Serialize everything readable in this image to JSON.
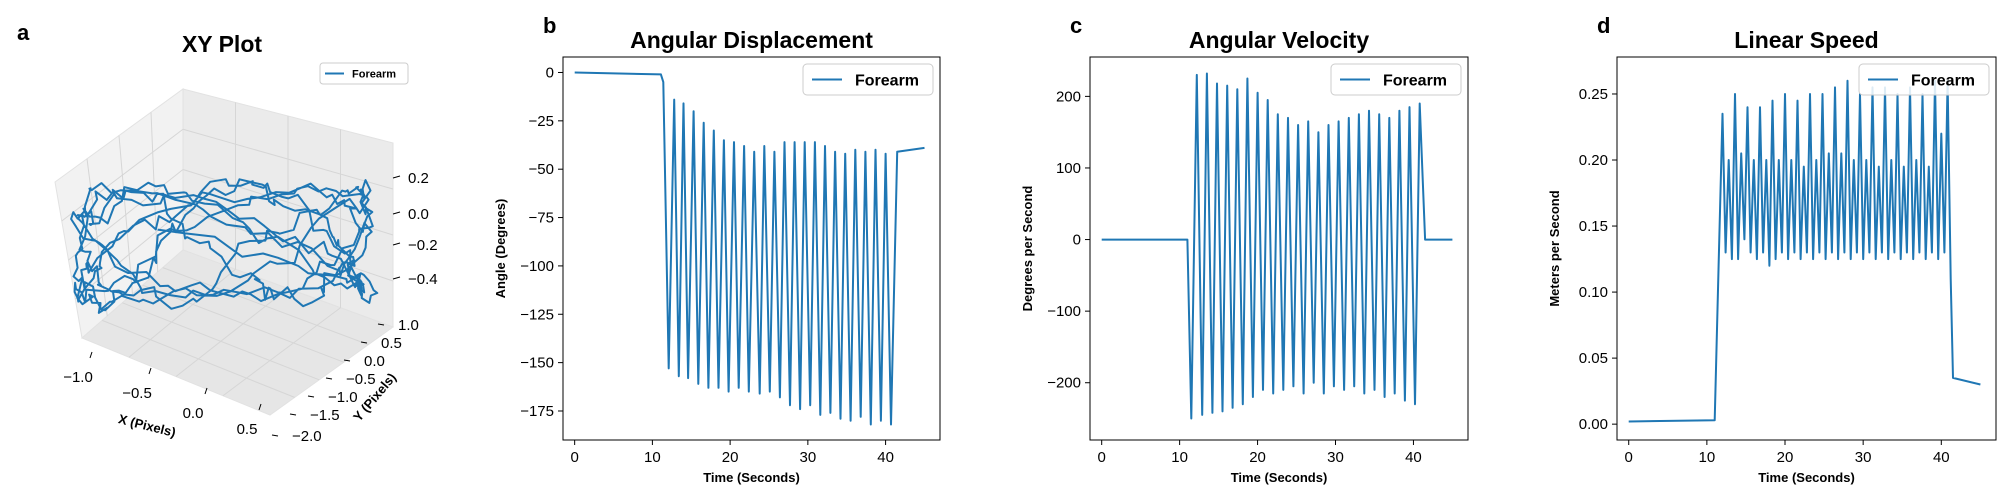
{
  "chart_data": [
    {
      "panel": "a",
      "type": "line-3d",
      "title": "XY Plot",
      "legend": {
        "entries": [
          "Forearm"
        ],
        "placement": "top-right"
      },
      "series": [
        {
          "name": "Forearm",
          "color": "#1f77b4"
        }
      ],
      "axes": {
        "x": {
          "label": "X (Pixels)",
          "ticks": [
            "−1.0",
            "−0.5",
            "0.0",
            "0.5"
          ],
          "range": [
            -1.3,
            0.9
          ]
        },
        "y": {
          "label": "Y (Pixels)",
          "ticks": [
            "1.0",
            "0.5",
            "0.0",
            "−0.5",
            "−1.0",
            "−1.5",
            "−2.0"
          ],
          "range": [
            -2.0,
            1.2
          ]
        },
        "z": {
          "label": "",
          "ticks": [
            "0.2",
            "0.0",
            "−0.2",
            "−0.4"
          ],
          "range": [
            -0.5,
            0.35
          ]
        }
      }
    },
    {
      "panel": "b",
      "type": "line",
      "title": "Angular Displacement",
      "xlabel": "Time (Seconds)",
      "ylabel": "Angle (Degrees)",
      "xlim": [
        -1.5,
        47
      ],
      "ylim": [
        -190,
        8
      ],
      "xticks": [
        "0",
        "10",
        "20",
        "30",
        "40"
      ],
      "yticks": [
        "0",
        "−25",
        "−50",
        "−75",
        "−100",
        "−125",
        "−150",
        "−175"
      ],
      "legend": {
        "entries": [
          "Forearm"
        ],
        "placement": "top-right"
      },
      "series": [
        {
          "name": "Forearm",
          "color": "#1f77b4",
          "x": [
            0,
            11.1,
            11.4,
            12.1,
            12.8,
            13.4,
            14.0,
            14.6,
            15.3,
            15.9,
            16.6,
            17.2,
            17.9,
            18.5,
            19.2,
            19.8,
            20.5,
            21.1,
            21.8,
            22.4,
            23.1,
            23.8,
            24.4,
            25.1,
            25.7,
            26.4,
            27.0,
            27.7,
            28.3,
            29.0,
            29.6,
            30.3,
            30.9,
            31.6,
            32.2,
            32.9,
            33.5,
            34.2,
            34.8,
            35.5,
            36.1,
            36.8,
            37.4,
            38.1,
            38.7,
            39.4,
            40.0,
            40.7,
            41.5,
            45
          ],
          "y": [
            0,
            -1,
            -5,
            -153,
            -14,
            -157,
            -16,
            -158,
            -20,
            -161,
            -26,
            -163,
            -30,
            -163,
            -35,
            -165,
            -36,
            -163,
            -38,
            -165,
            -41,
            -166,
            -38,
            -165,
            -41,
            -168,
            -36,
            -172,
            -36,
            -174,
            -36,
            -172,
            -36,
            -177,
            -38,
            -176,
            -41,
            -179,
            -42,
            -180,
            -40,
            -178,
            -41,
            -182,
            -40,
            -180,
            -42,
            -182,
            -41,
            -39
          ]
        }
      ]
    },
    {
      "panel": "c",
      "type": "line",
      "title": "Angular Velocity",
      "xlabel": "Time (Seconds)",
      "ylabel": "Degrees per Second",
      "xlim": [
        -1.5,
        47
      ],
      "ylim": [
        -280,
        255
      ],
      "xticks": [
        "0",
        "10",
        "20",
        "30",
        "40"
      ],
      "yticks": [
        "200",
        "100",
        "0",
        "−100",
        "−200"
      ],
      "legend": {
        "entries": [
          "Forearm"
        ],
        "placement": "top-right"
      },
      "series": [
        {
          "name": "Forearm",
          "color": "#1f77b4",
          "x": [
            0,
            11.0,
            11.5,
            12.2,
            12.9,
            13.5,
            14.2,
            14.8,
            15.5,
            16.1,
            16.8,
            17.4,
            18.1,
            18.7,
            19.4,
            20.0,
            20.7,
            21.3,
            22.0,
            22.6,
            23.3,
            23.9,
            24.6,
            25.2,
            25.9,
            26.5,
            27.2,
            27.8,
            28.5,
            29.1,
            29.8,
            30.4,
            31.1,
            31.7,
            32.4,
            33.0,
            33.7,
            34.3,
            35.0,
            35.6,
            36.3,
            36.9,
            37.6,
            38.2,
            38.9,
            39.5,
            40.2,
            40.8,
            41.5,
            45
          ],
          "y": [
            0,
            0,
            -250,
            230,
            -245,
            232,
            -242,
            218,
            -240,
            215,
            -235,
            210,
            -230,
            225,
            -220,
            205,
            -210,
            195,
            -215,
            175,
            -210,
            170,
            -205,
            160,
            -215,
            165,
            -200,
            150,
            -215,
            160,
            -205,
            165,
            -210,
            170,
            -205,
            175,
            -215,
            180,
            -210,
            175,
            -220,
            170,
            -215,
            180,
            -225,
            185,
            -230,
            190,
            0,
            0
          ]
        }
      ]
    },
    {
      "panel": "d",
      "type": "line",
      "title": "Linear Speed",
      "xlabel": "Time (Seconds)",
      "ylabel": "Meters per Second",
      "xlim": [
        -1.5,
        47
      ],
      "ylim": [
        -0.012,
        0.278
      ],
      "xticks": [
        "0",
        "10",
        "20",
        "30",
        "40"
      ],
      "yticks": [
        "0.00",
        "0.05",
        "0.10",
        "0.15",
        "0.20",
        "0.25"
      ],
      "legend": {
        "entries": [
          "Forearm"
        ],
        "placement": "top-right"
      },
      "series": [
        {
          "name": "Forearm",
          "color": "#1f77b4",
          "x": [
            0,
            11.0,
            11.5,
            12.0,
            12.4,
            12.8,
            13.2,
            13.6,
            14.0,
            14.4,
            14.8,
            15.2,
            15.6,
            16.0,
            16.4,
            16.8,
            17.2,
            17.6,
            18.0,
            18.4,
            18.8,
            19.2,
            19.6,
            20.0,
            20.4,
            20.8,
            21.2,
            21.6,
            22.0,
            22.4,
            22.8,
            23.2,
            23.6,
            24.0,
            24.4,
            24.8,
            25.2,
            25.6,
            26.0,
            26.4,
            26.8,
            27.2,
            27.6,
            28.0,
            28.4,
            28.8,
            29.2,
            29.6,
            30.0,
            30.4,
            30.8,
            31.2,
            31.6,
            32.0,
            32.4,
            32.8,
            33.2,
            33.6,
            34.0,
            34.4,
            34.8,
            35.2,
            35.6,
            36.0,
            36.4,
            36.8,
            37.2,
            37.6,
            38.0,
            38.4,
            38.8,
            39.2,
            39.6,
            40.0,
            40.4,
            40.8,
            41.2,
            41.5,
            45
          ],
          "y": [
            0.002,
            0.003,
            0.12,
            0.235,
            0.13,
            0.2,
            0.125,
            0.25,
            0.125,
            0.205,
            0.14,
            0.24,
            0.13,
            0.2,
            0.125,
            0.24,
            0.13,
            0.2,
            0.12,
            0.245,
            0.125,
            0.2,
            0.13,
            0.25,
            0.125,
            0.2,
            0.13,
            0.245,
            0.125,
            0.195,
            0.13,
            0.25,
            0.125,
            0.2,
            0.13,
            0.25,
            0.125,
            0.205,
            0.13,
            0.255,
            0.125,
            0.205,
            0.13,
            0.26,
            0.125,
            0.2,
            0.13,
            0.25,
            0.125,
            0.2,
            0.13,
            0.255,
            0.125,
            0.195,
            0.13,
            0.255,
            0.125,
            0.2,
            0.13,
            0.25,
            0.125,
            0.195,
            0.13,
            0.255,
            0.125,
            0.2,
            0.13,
            0.25,
            0.125,
            0.195,
            0.13,
            0.26,
            0.125,
            0.22,
            0.13,
            0.26,
            0.11,
            0.035,
            0.03
          ]
        }
      ]
    }
  ]
}
